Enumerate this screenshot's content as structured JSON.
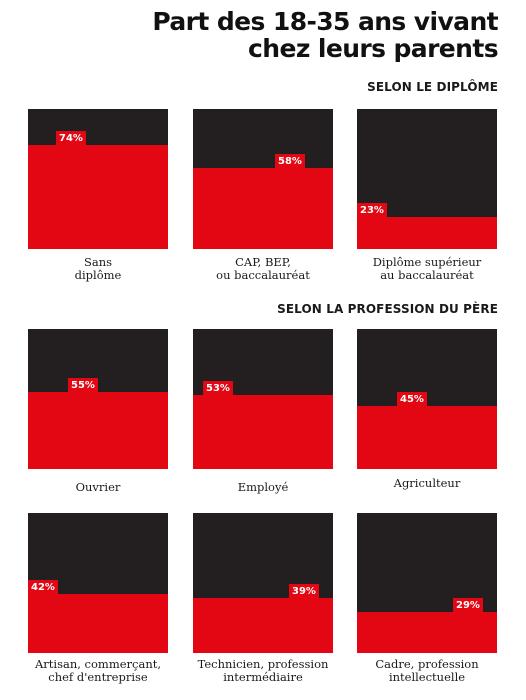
{
  "title_line1": "Part des 18-35 ans vivant",
  "title_line2": "chez leurs parents",
  "chart_data": {
    "type": "bar",
    "groups": [
      {
        "heading": "SELON LE DIPLÔME",
        "items": [
          {
            "category": [
              "Sans",
              "diplôme"
            ],
            "value": 74,
            "label": "74%"
          },
          {
            "category": [
              "CAP, BEP,",
              "ou baccalauréat"
            ],
            "value": 58,
            "label": "58%"
          },
          {
            "category": [
              "Diplôme supérieur",
              "au baccalauréat"
            ],
            "value": 23,
            "label": "23%"
          }
        ]
      },
      {
        "heading": "SELON LA PROFESSION DU PÈRE",
        "items": [
          {
            "category": [
              "Ouvrier"
            ],
            "value": 55,
            "label": "55%"
          },
          {
            "category": [
              "Employé"
            ],
            "value": 53,
            "label": "53%"
          },
          {
            "category": [
              "Agriculteur"
            ],
            "value": 45,
            "label": "45%"
          },
          {
            "category": [
              "Artisan, commerçant,",
              "chef d'entreprise"
            ],
            "value": 42,
            "label": "42%"
          },
          {
            "category": [
              "Technicien, profession",
              "intermédiaire"
            ],
            "value": 39,
            "label": "39%"
          },
          {
            "category": [
              "Cadre, profession",
              "intellectuelle"
            ],
            "value": 29,
            "label": "29%"
          }
        ]
      }
    ],
    "ylim": [
      0,
      100
    ],
    "colors": {
      "bar": "#e30613",
      "background": "#231f20"
    }
  }
}
